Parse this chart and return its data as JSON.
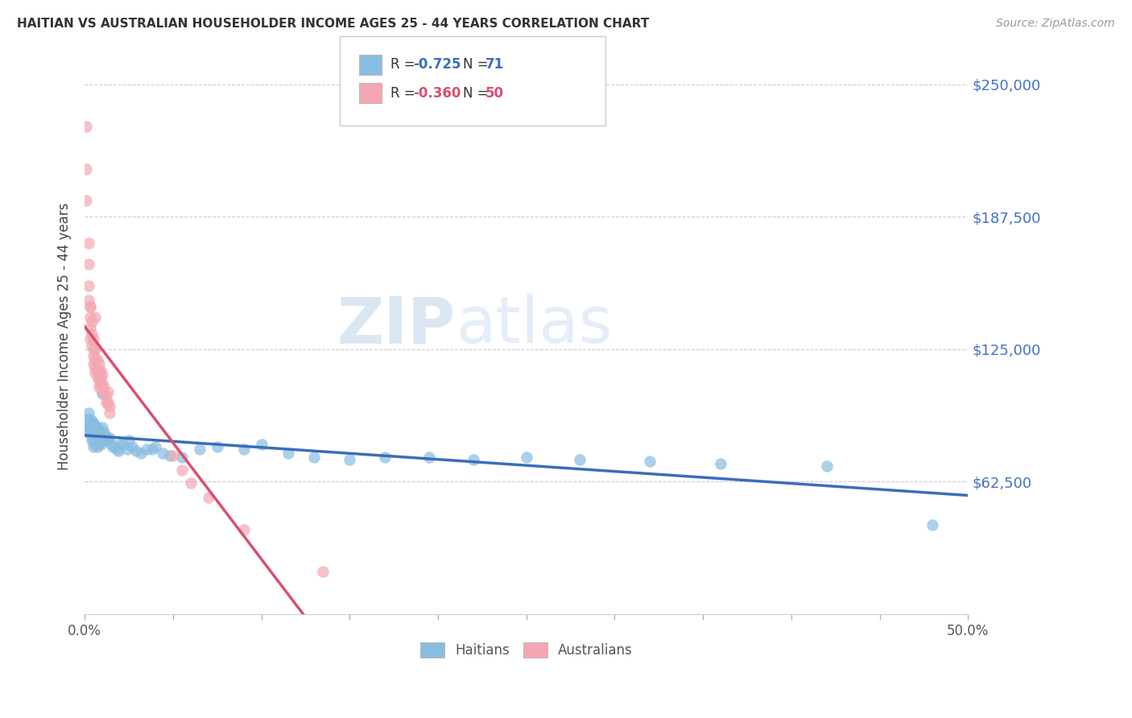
{
  "title": "HAITIAN VS AUSTRALIAN HOUSEHOLDER INCOME AGES 25 - 44 YEARS CORRELATION CHART",
  "source": "Source: ZipAtlas.com",
  "ylabel": "Householder Income Ages 25 - 44 years",
  "ytick_labels": [
    "$62,500",
    "$125,000",
    "$187,500",
    "$250,000"
  ],
  "ytick_values": [
    62500,
    125000,
    187500,
    250000
  ],
  "xmin": 0.0,
  "xmax": 0.5,
  "ymin": 0,
  "ymax": 262000,
  "legend_r_haitian": "R = -0.725",
  "legend_n_haitian": "N =  71",
  "legend_r_australian": "R = -0.360",
  "legend_n_australian": "N =  50",
  "color_haitian": "#89BDE0",
  "color_australian": "#F4A7B2",
  "color_haitian_line": "#3A6EBB",
  "color_australian_line": "#D94F70",
  "color_australian_dash": "#F0B0C0",
  "haitian_x": [
    0.001,
    0.001,
    0.002,
    0.002,
    0.002,
    0.003,
    0.003,
    0.003,
    0.004,
    0.004,
    0.004,
    0.004,
    0.005,
    0.005,
    0.005,
    0.005,
    0.005,
    0.006,
    0.006,
    0.006,
    0.006,
    0.007,
    0.007,
    0.007,
    0.007,
    0.008,
    0.008,
    0.008,
    0.009,
    0.009,
    0.009,
    0.01,
    0.01,
    0.011,
    0.011,
    0.012,
    0.013,
    0.014,
    0.015,
    0.016,
    0.018,
    0.019,
    0.02,
    0.022,
    0.024,
    0.025,
    0.027,
    0.029,
    0.032,
    0.035,
    0.038,
    0.04,
    0.044,
    0.048,
    0.055,
    0.065,
    0.075,
    0.09,
    0.1,
    0.115,
    0.13,
    0.15,
    0.17,
    0.195,
    0.22,
    0.25,
    0.28,
    0.32,
    0.36,
    0.42,
    0.48
  ],
  "haitian_y": [
    92000,
    89000,
    95000,
    90000,
    86000,
    92000,
    88000,
    85000,
    91000,
    88000,
    85000,
    82000,
    90000,
    87000,
    84000,
    82000,
    79000,
    89000,
    86000,
    83000,
    80000,
    88000,
    85000,
    82000,
    79000,
    87000,
    84000,
    81000,
    86000,
    83000,
    80000,
    104000,
    88000,
    86000,
    82000,
    84000,
    82000,
    83000,
    80000,
    79000,
    78000,
    77000,
    80000,
    80000,
    78000,
    82000,
    79000,
    77000,
    76000,
    78000,
    78000,
    79000,
    76000,
    75000,
    74000,
    78000,
    79000,
    78000,
    80000,
    76000,
    74000,
    73000,
    74000,
    74000,
    73000,
    74000,
    73000,
    72000,
    71000,
    70000,
    42000
  ],
  "australian_x": [
    0.001,
    0.001,
    0.001,
    0.002,
    0.002,
    0.002,
    0.002,
    0.003,
    0.003,
    0.003,
    0.003,
    0.003,
    0.004,
    0.004,
    0.004,
    0.005,
    0.005,
    0.005,
    0.005,
    0.006,
    0.006,
    0.006,
    0.006,
    0.006,
    0.007,
    0.007,
    0.007,
    0.008,
    0.008,
    0.008,
    0.008,
    0.009,
    0.009,
    0.009,
    0.01,
    0.01,
    0.01,
    0.011,
    0.012,
    0.012,
    0.013,
    0.013,
    0.014,
    0.014,
    0.05,
    0.055,
    0.06,
    0.07,
    0.09,
    0.135
  ],
  "australian_y": [
    230000,
    210000,
    195000,
    175000,
    165000,
    155000,
    148000,
    145000,
    140000,
    135000,
    130000,
    145000,
    138000,
    132000,
    127000,
    130000,
    125000,
    122000,
    118000,
    125000,
    120000,
    116000,
    114000,
    140000,
    120000,
    115000,
    112000,
    118000,
    114000,
    110000,
    107000,
    115000,
    112000,
    108000,
    113000,
    109000,
    105000,
    107000,
    103000,
    100000,
    105000,
    100000,
    98000,
    95000,
    75000,
    68000,
    62000,
    55000,
    40000,
    20000
  ]
}
